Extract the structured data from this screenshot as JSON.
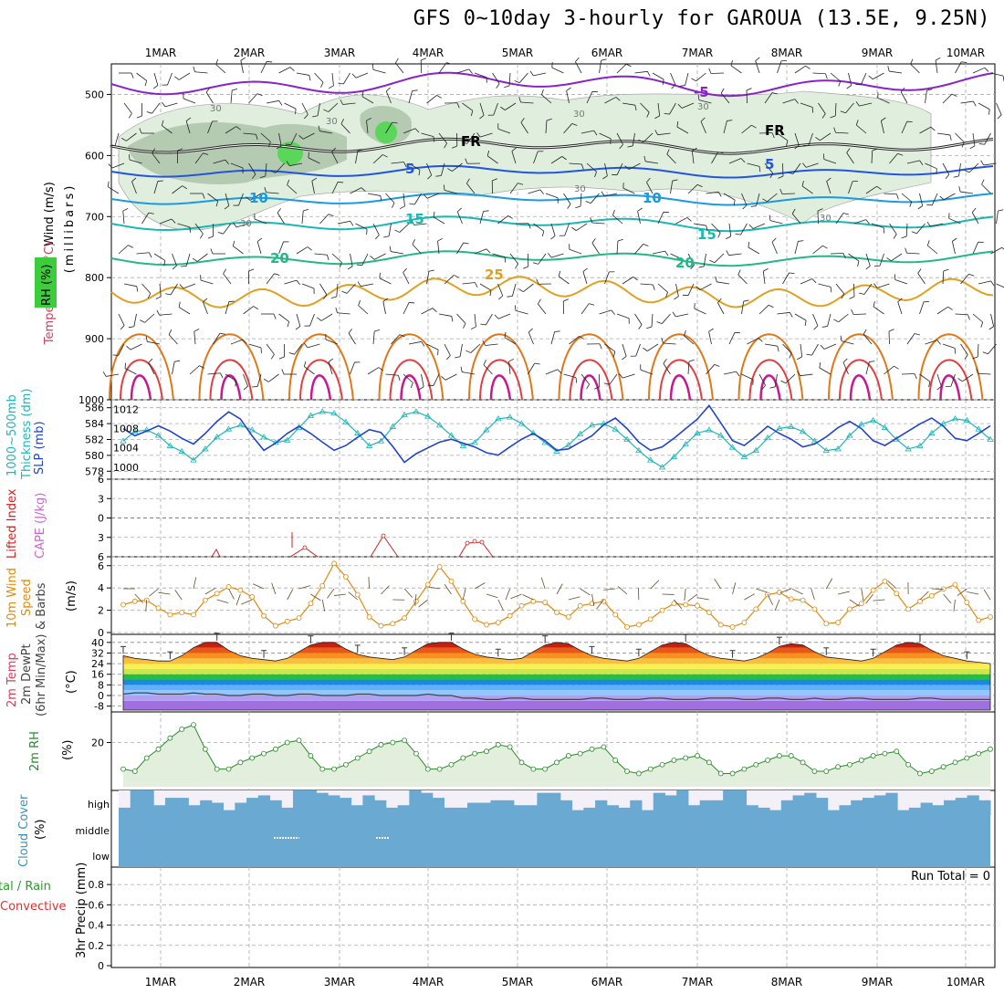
{
  "title": "GFS 0~10day 3-hourly for GAROUA (13.5E, 9.25N)",
  "dates": [
    "1MAR",
    "2MAR",
    "3MAR",
    "4MAR",
    "5MAR",
    "6MAR",
    "7MAR",
    "8MAR",
    "9MAR",
    "10MAR"
  ],
  "panels": {
    "upper": {
      "ylabel_wind": "Wind (m/s)",
      "ylabel_temp": "Temperature (°C)",
      "ylabel_rh": "RH (%)",
      "ylabel_unit": "(millibars)"
    },
    "thickness": {
      "ylabel_a": "1000~500mb",
      "ylabel_b": "Thickness (dm)",
      "ylabel_c": "SLP (mb)"
    },
    "stability": {
      "ylabel_a": "Lifted Index",
      "ylabel_b": "CAPE (J/kg)"
    },
    "wind10": {
      "ylabel_a": "10m Wind",
      "ylabel_b": "Speed",
      "ylabel_c": "& Barbs",
      "ylabel_d": "(m/s)"
    },
    "temp2m": {
      "ylabel_a": "2m Temp",
      "ylabel_b": "2m DewPt",
      "ylabel_c": "(6hr Min/Max)",
      "ylabel_d": "(°C)"
    },
    "rh2m": {
      "ylabel_a": "2m RH",
      "ylabel_b": "(%)"
    },
    "cloud": {
      "ylabel_a": "Cloud Cover",
      "ylabel_b": "(%)",
      "levels": [
        "high",
        "middle",
        "low"
      ]
    },
    "precip": {
      "ylabel_a": "tal / Rain",
      "ylabel_b": "Convective",
      "ylabel_c": "3hr Precip (mm)",
      "run_total": "Run Total = 0"
    }
  },
  "colors": {
    "rh_fill": "#dfeedd",
    "rh_dark": "#aac2a6",
    "rh_green": "#5ad65a",
    "thickness": "#22b5b5",
    "slp": "#2244cc",
    "lifted": "#cc2222",
    "cape": "#cc66cc",
    "wind_speed": "#e08a10",
    "rh2m": "#2a8a2a",
    "cloud": "#6aaad2",
    "cloud_bg": "#f4f0f8",
    "dewpoint": "#444444"
  },
  "chart_data": [
    {
      "type": "contour",
      "panel": "upper",
      "y_axis": "pressure (mb)",
      "ylim": [
        1000,
        450
      ],
      "yticks": [
        500,
        600,
        700,
        800,
        900,
        1000
      ],
      "temperature_contours_c": [
        -5,
        0,
        5,
        10,
        15,
        20,
        25
      ],
      "freezing_level_label": "FR",
      "rh_contour_labels": [
        30
      ]
    },
    {
      "type": "line",
      "panel": "thickness",
      "x_step_hours": 3,
      "series": [
        {
          "name": "1000~500mb Thickness",
          "units": "dm",
          "yticks": [
            578,
            580,
            582,
            584,
            586
          ],
          "values": [
            581.8,
            583.0,
            583.2,
            582.5,
            581.2,
            580.5,
            579.4,
            580.8,
            582.3,
            583.3,
            583.8,
            583.2,
            582.3,
            581.6,
            581.9,
            583.5,
            585.0,
            585.5,
            585.3,
            584.2,
            582.8,
            581.2,
            581.8,
            583.6,
            585.1,
            585.5,
            584.9,
            583.8,
            582.5,
            581.2,
            581.6,
            583.2,
            584.6,
            584.8,
            584.0,
            582.8,
            581.6,
            580.5,
            581.3,
            582.7,
            583.8,
            584.0,
            583.3,
            582.0,
            580.6,
            579.4,
            578.5,
            579.8,
            581.4,
            582.8,
            583.2,
            582.5,
            581.0,
            579.8,
            580.6,
            582.2,
            583.4,
            583.6,
            583.0,
            581.8,
            580.6,
            580.8,
            582.5,
            583.9,
            584.4,
            583.5,
            582.0,
            580.8,
            581.2,
            582.8,
            584.0,
            584.6,
            584.4,
            583.3,
            582.0
          ]
        },
        {
          "name": "SLP",
          "units": "mb",
          "yticks": [
            1000,
            1004,
            1008,
            1012
          ],
          "values": [
            1008.0,
            1006.5,
            1007.5,
            1008.6,
            1007.5,
            1006.0,
            1004.8,
            1007.0,
            1009.5,
            1011.5,
            1010.0,
            1006.5,
            1003.5,
            1005.0,
            1007.0,
            1008.5,
            1007.0,
            1005.2,
            1003.5,
            1004.5,
            1006.2,
            1007.8,
            1007.2,
            1004.3,
            1001.0,
            1002.8,
            1004.0,
            1005.2,
            1005.8,
            1005.0,
            1004.2,
            1003.0,
            1002.5,
            1004.2,
            1005.8,
            1007.0,
            1005.5,
            1003.5,
            1003.8,
            1005.2,
            1006.5,
            1008.8,
            1010.2,
            1008.0,
            1005.2,
            1003.5,
            1004.2,
            1006.0,
            1008.0,
            1010.0,
            1012.8,
            1009.2,
            1005.5,
            1004.5,
            1006.4,
            1008.5,
            1007.0,
            1005.8,
            1004.2,
            1004.8,
            1006.3,
            1008.2,
            1009.5,
            1008.0,
            1005.5,
            1004.5,
            1006.0,
            1007.5,
            1009.0,
            1010.2,
            1008.5,
            1006.0,
            1005.5,
            1007.0,
            1008.6
          ]
        }
      ]
    },
    {
      "type": "line",
      "panel": "stability",
      "yticks_lifted": [
        -6,
        -3,
        0,
        3,
        6
      ],
      "series": [
        {
          "name": "Lifted Index",
          "values": [
            null,
            null,
            null,
            null,
            null,
            null,
            null,
            null,
            null,
            null,
            null,
            null,
            null,
            null,
            null,
            null,
            null,
            null,
            null,
            null,
            4.5,
            3.0,
            2.2,
            3.2,
            4.6,
            null,
            null,
            null,
            null,
            null,
            null,
            null,
            null,
            null,
            null,
            null
          ]
        }
      ]
    },
    {
      "type": "line",
      "panel": "wind10",
      "ylabel": "(m/s)",
      "yticks": [
        0,
        2,
        4,
        6
      ],
      "series": [
        {
          "name": "10m Wind Speed",
          "values": [
            2.5,
            2.8,
            2.9,
            2.2,
            1.6,
            1.8,
            1.6,
            2.9,
            3.5,
            4.1,
            3.8,
            3.2,
            1.5,
            0.6,
            1.0,
            1.3,
            2.6,
            4.2,
            6.2,
            5.0,
            3.4,
            1.4,
            0.6,
            0.8,
            1.3,
            2.8,
            4.3,
            5.9,
            4.6,
            2.8,
            1.2,
            0.7,
            0.9,
            1.5,
            2.4,
            2.8,
            2.7,
            1.8,
            1.4,
            2.4,
            2.6,
            2.8,
            1.6,
            0.5,
            0.7,
            1.2,
            2.0,
            2.6,
            2.5,
            2.4,
            1.8,
            0.7,
            0.5,
            0.9,
            2.1,
            3.4,
            3.6,
            3.0,
            2.9,
            2.1,
            0.8,
            0.9,
            2.1,
            2.6,
            3.8,
            4.6,
            3.5,
            2.1,
            2.8,
            3.3,
            3.9,
            4.3,
            2.7,
            1.1,
            1.4
          ]
        }
      ]
    },
    {
      "type": "area",
      "panel": "temp2m",
      "yticks": [
        -8,
        0,
        8,
        16,
        24,
        32,
        40
      ],
      "series": [
        {
          "name": "2m Temp",
          "values": [
            30,
            28,
            27,
            26,
            26,
            30,
            36,
            40,
            40,
            34,
            30,
            28,
            27,
            26,
            28,
            33,
            38,
            40,
            40,
            35,
            31,
            29,
            28,
            27,
            29,
            34,
            39,
            40,
            40,
            35,
            31,
            29,
            28,
            27,
            28,
            33,
            38,
            40,
            39,
            34,
            30,
            28,
            27,
            26,
            28,
            33,
            38,
            40,
            39,
            34,
            30,
            28,
            27,
            26,
            28,
            32,
            37,
            39,
            38,
            33,
            29,
            28,
            27,
            26,
            28,
            33,
            38,
            40,
            39,
            34,
            30,
            28,
            26,
            25,
            24
          ]
        },
        {
          "name": "2m DewPt",
          "values": [
            1,
            2,
            2,
            1,
            1,
            1,
            2,
            1,
            1,
            0,
            0,
            1,
            1,
            0,
            0,
            1,
            1,
            0,
            0,
            0,
            1,
            1,
            0,
            0,
            0,
            0,
            1,
            0,
            0,
            -2,
            -2,
            -3,
            -3,
            -2,
            -2,
            -3,
            -3,
            -3,
            -3,
            -3,
            -2,
            -2,
            -3,
            -3,
            -3,
            -2,
            -2,
            -3,
            -3,
            -3,
            -2,
            -2,
            -2,
            -3,
            -3,
            -2,
            -2,
            -3,
            -3,
            -2,
            -3,
            -3,
            -2,
            -2,
            -3,
            -3,
            -3,
            -3,
            -2,
            -2,
            -3,
            -3,
            -3,
            -3,
            -3
          ]
        }
      ]
    },
    {
      "type": "line",
      "panel": "rh2m",
      "ylabel": "(%)",
      "yticks": [
        20
      ],
      "series": [
        {
          "name": "2m RH",
          "values": [
            8,
            7,
            13,
            17,
            22,
            26,
            28,
            17,
            8,
            8,
            11,
            13,
            15,
            17,
            20,
            21,
            14,
            8,
            8,
            10,
            13,
            16,
            19,
            20,
            21,
            15,
            8,
            8,
            10,
            13,
            15,
            16,
            19,
            18,
            11,
            8,
            8,
            11,
            14,
            15,
            17,
            18,
            12,
            7,
            6,
            8,
            10,
            12,
            13,
            14,
            11,
            6,
            6,
            8,
            10,
            12,
            14,
            14,
            11,
            7,
            7,
            9,
            10,
            12,
            14,
            15,
            16,
            10,
            6,
            7,
            9,
            11,
            13,
            15,
            17
          ]
        }
      ]
    },
    {
      "type": "bar",
      "panel": "cloud",
      "levels": [
        "high",
        "middle",
        "low"
      ],
      "series": [
        {
          "name": "high cloud cover (%)",
          "values": [
            30,
            100,
            100,
            40,
            70,
            70,
            40,
            60,
            50,
            20,
            50,
            70,
            80,
            60,
            30,
            100,
            100,
            90,
            80,
            70,
            40,
            80,
            60,
            30,
            40,
            100,
            90,
            70,
            30,
            30,
            50,
            50,
            60,
            60,
            40,
            40,
            90,
            90,
            60,
            20,
            30,
            60,
            40,
            30,
            60,
            20,
            90,
            80,
            100,
            40,
            60,
            60,
            100,
            100,
            40,
            30,
            20,
            60,
            80,
            90,
            70,
            20,
            40,
            60,
            70,
            80,
            90,
            20,
            30,
            50,
            40,
            60,
            70,
            80,
            60
          ]
        }
      ]
    },
    {
      "type": "bar",
      "panel": "precip",
      "ylabel": "3hr Precip (mm)",
      "yticks": [
        0,
        0.2,
        0.4,
        0.6,
        0.8
      ],
      "run_total": 0
    }
  ]
}
